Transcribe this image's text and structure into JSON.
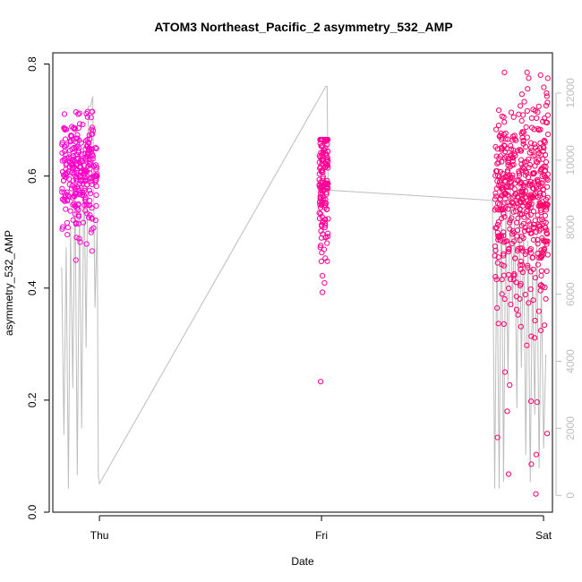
{
  "chart_data": {
    "type": "scatter",
    "title": "ATOM3 Northeast_Pacific_2 asymmetry_532_AMP",
    "xlabel": "Date",
    "ylabel": "asymmetry_532_AMP",
    "x_ticks": [
      "Thu",
      "Fri",
      "Sat"
    ],
    "x_range": [
      -0.21,
      2.04
    ],
    "ylim": [
      0,
      0.82
    ],
    "y_ticks": [
      "0.0",
      "0.2",
      "0.4",
      "0.6",
      "0.8"
    ],
    "y_tick_values": [
      0,
      0.2,
      0.4,
      0.6,
      0.8
    ],
    "y2lim": [
      -500,
      13200
    ],
    "y2_ticks": [
      "0",
      "2000",
      "4000",
      "6000",
      "8000",
      "10000",
      "12000"
    ],
    "y2_tick_values": [
      0,
      2000,
      4000,
      6000,
      8000,
      10000,
      12000
    ],
    "grid": false,
    "colors": {
      "points_first": "#ff00cc",
      "points_last": "#ff0066",
      "secondary_line": "#bdbdbd"
    },
    "series": [
      {
        "kind": "points",
        "clusters": [
          {
            "x_start": -0.17,
            "x_end": -0.01,
            "y_center": 0.61,
            "y_spread": 0.05,
            "y_min": 0.45,
            "y_max": 0.715,
            "n": 280
          },
          {
            "x_start": 0.99,
            "x_end": 1.03,
            "y_center": 0.58,
            "y_spread": 0.06,
            "y_min": 0.22,
            "y_max": 0.665,
            "n": 150
          },
          {
            "x_start": 1.78,
            "x_end": 2.02,
            "y_center": 0.56,
            "y_spread": 0.09,
            "y_min": 0.02,
            "y_max": 0.785,
            "n": 520
          }
        ]
      },
      {
        "kind": "line",
        "axis": "right",
        "x": [
          -0.17,
          -0.16,
          -0.15,
          -0.14,
          -0.13,
          -0.12,
          -0.11,
          -0.1,
          -0.09,
          -0.08,
          -0.07,
          -0.06,
          -0.05,
          -0.04,
          -0.03,
          -0.02,
          -0.01,
          -0.005,
          0.0,
          1.02,
          1.025,
          1.03,
          1.04,
          1.77,
          1.78,
          1.79,
          1.8,
          1.81,
          1.82,
          1.83,
          1.84,
          1.85,
          1.86,
          1.87,
          1.88,
          1.89,
          1.9,
          1.91,
          1.92,
          1.93,
          1.94,
          1.95,
          1.96,
          1.97,
          1.98,
          1.99,
          2.0,
          2.01
        ],
        "y": [
          6800,
          1800,
          7400,
          200,
          8000,
          3200,
          9400,
          600,
          8600,
          2000,
          9800,
          4400,
          11600,
          11600,
          11900,
          5600,
          8200,
          600,
          350,
          12200,
          12200,
          9100,
          9100,
          8800,
          200,
          7800,
          200,
          9000,
          400,
          8600,
          3400,
          9400,
          5600,
          8200,
          2600,
          9200,
          3800,
          8000,
          1200,
          7600,
          400,
          6800,
          2400,
          7800,
          800,
          6400,
          1400,
          4200
        ]
      }
    ]
  }
}
